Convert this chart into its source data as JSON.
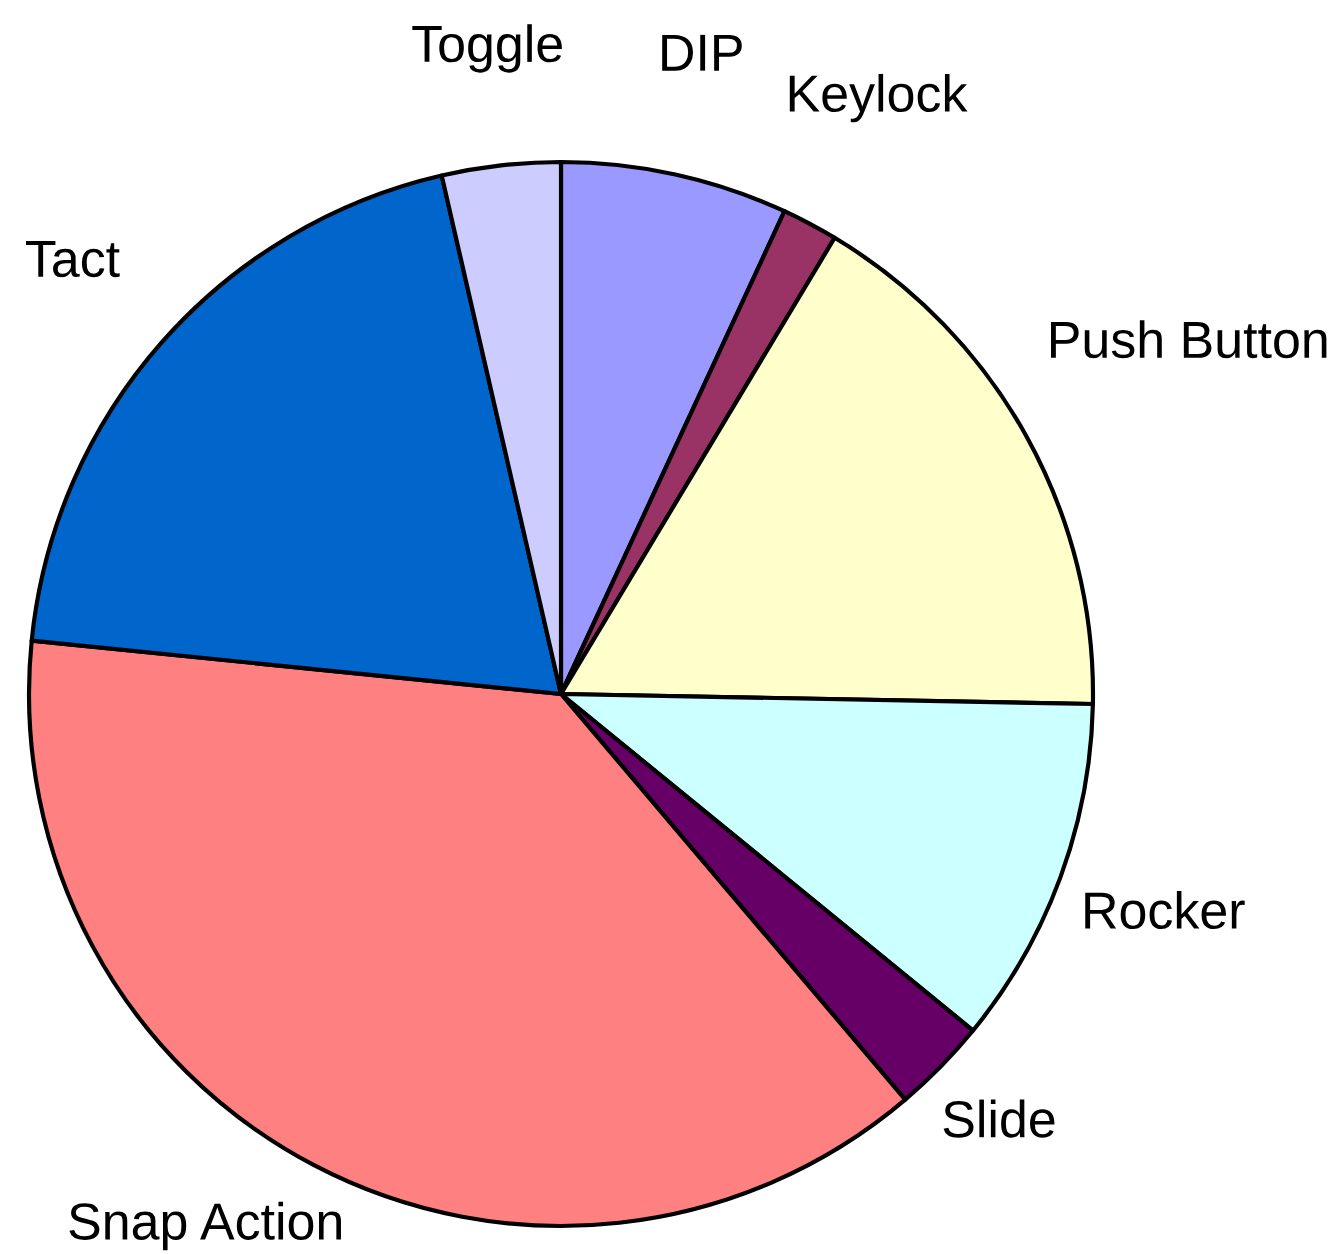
{
  "chart_data": {
    "type": "pie",
    "categories": [
      "DIP",
      "Keylock",
      "Push Button",
      "Rocker",
      "Slide",
      "Snap Action",
      "Tact",
      "Toggle"
    ],
    "values": [
      6.9,
      1.7,
      16.7,
      10.6,
      2.9,
      37.8,
      19.8,
      3.6
    ],
    "colors": [
      "#9999ff",
      "#993366",
      "#ffffcc",
      "#ccffff",
      "#660066",
      "#ff8080",
      "#0066cc",
      "#ccccff"
    ]
  }
}
